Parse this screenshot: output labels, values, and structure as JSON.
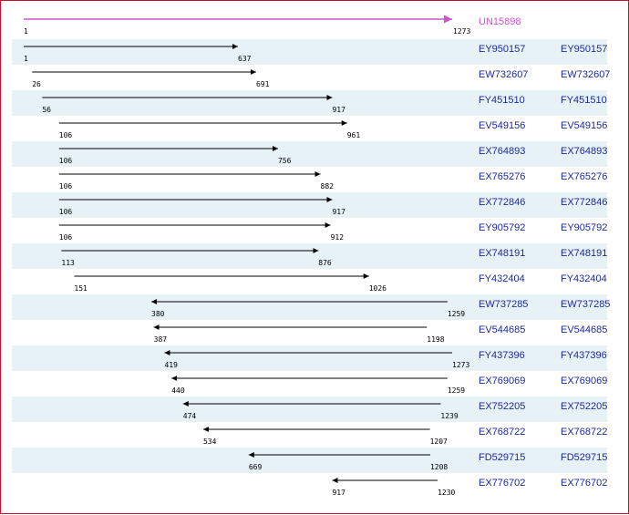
{
  "query": {
    "name": "UN15898",
    "start": 1,
    "end": 1273,
    "start_label": "1",
    "end_label": "1273",
    "color": "#cc55cc"
  },
  "colors": {
    "row_shade": "#e6f2f6",
    "accession_text": "#1f2a9c",
    "frame_border": "#c8102e"
  },
  "alignments": [
    {
      "acc": "EY950157",
      "start": 1,
      "end": 637,
      "start_label": "1",
      "end_label": "637",
      "direction": "forward"
    },
    {
      "acc": "EW732607",
      "start": 26,
      "end": 691,
      "start_label": "26",
      "end_label": "691",
      "direction": "forward"
    },
    {
      "acc": "FY451510",
      "start": 56,
      "end": 917,
      "start_label": "56",
      "end_label": "917",
      "direction": "forward"
    },
    {
      "acc": "EV549156",
      "start": 106,
      "end": 961,
      "start_label": "106",
      "end_label": "961",
      "direction": "forward"
    },
    {
      "acc": "EX764893",
      "start": 106,
      "end": 756,
      "start_label": "106",
      "end_label": "756",
      "direction": "forward"
    },
    {
      "acc": "EX765276",
      "start": 106,
      "end": 882,
      "start_label": "106",
      "end_label": "882",
      "direction": "forward"
    },
    {
      "acc": "EX772846",
      "start": 106,
      "end": 917,
      "start_label": "106",
      "end_label": "917",
      "direction": "forward"
    },
    {
      "acc": "EY905792",
      "start": 106,
      "end": 912,
      "start_label": "106",
      "end_label": "912",
      "direction": "forward"
    },
    {
      "acc": "EX748191",
      "start": 113,
      "end": 876,
      "start_label": "113",
      "end_label": "876",
      "direction": "forward"
    },
    {
      "acc": "FY432404",
      "start": 151,
      "end": 1026,
      "start_label": "151",
      "end_label": "1026",
      "direction": "forward"
    },
    {
      "acc": "EW737285",
      "start": 380,
      "end": 1259,
      "start_label": "380",
      "end_label": "1259",
      "direction": "reverse"
    },
    {
      "acc": "EV544685",
      "start": 387,
      "end": 1198,
      "start_label": "387",
      "end_label": "1198",
      "direction": "reverse"
    },
    {
      "acc": "FY437396",
      "start": 419,
      "end": 1273,
      "start_label": "419",
      "end_label": "1273",
      "direction": "reverse"
    },
    {
      "acc": "EX769069",
      "start": 440,
      "end": 1259,
      "start_label": "440",
      "end_label": "1259",
      "direction": "reverse"
    },
    {
      "acc": "EX752205",
      "start": 474,
      "end": 1239,
      "start_label": "474",
      "end_label": "1239",
      "direction": "reverse"
    },
    {
      "acc": "EX768722",
      "start": 534,
      "end": 1207,
      "start_label": "534",
      "end_label": "1207",
      "direction": "reverse"
    },
    {
      "acc": "FD529715",
      "start": 669,
      "end": 1208,
      "start_label": "669",
      "end_label": "1208",
      "direction": "reverse"
    },
    {
      "acc": "EX776702",
      "start": 917,
      "end": 1230,
      "start_label": "917",
      "end_label": "1230",
      "direction": "reverse"
    }
  ]
}
